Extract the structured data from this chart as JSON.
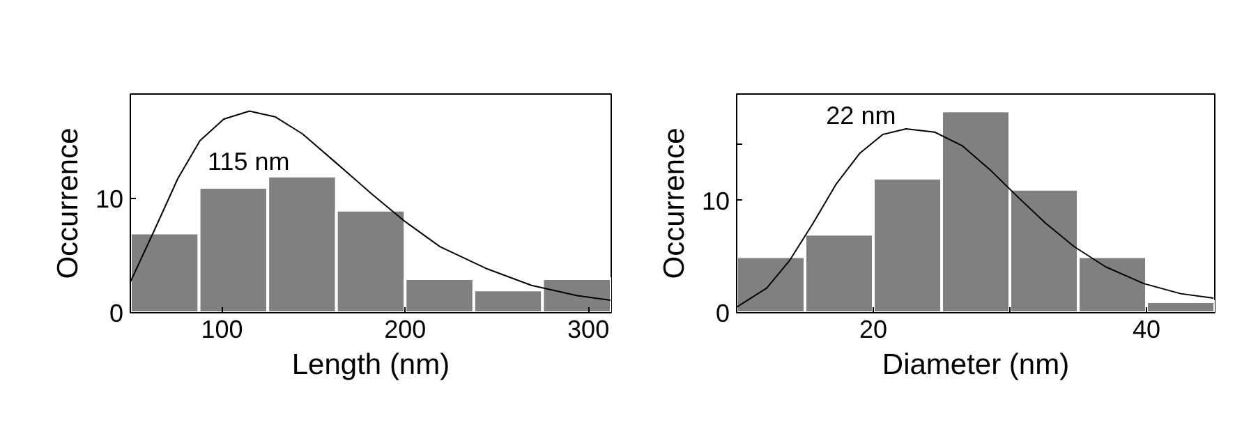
{
  "chart_data": [
    {
      "type": "histogram",
      "xlabel": "Length (nm)",
      "ylabel": "Occurrence",
      "xlim": [
        50,
        312.5
      ],
      "ylim": [
        0,
        19.2
      ],
      "xticks": [
        100,
        200,
        300
      ],
      "yticks": [
        0,
        10
      ],
      "grid": false,
      "series": [
        {
          "color": "#808080",
          "bins": [
            50,
            87.5,
            125,
            162.5,
            200,
            237.5,
            275,
            312.5
          ],
          "values": [
            7,
            11,
            12,
            9,
            3,
            2,
            3
          ]
        },
        {
          "type": "line",
          "color": "#000000",
          "x": [
            50,
            63,
            76,
            88,
            101,
            115,
            129,
            144,
            162,
            182,
            200,
            219,
            244,
            269,
            294,
            312
          ],
          "values": [
            2.7,
            7.2,
            11.8,
            15.1,
            17.0,
            17.7,
            17.2,
            15.7,
            13.2,
            10.4,
            8.0,
            5.8,
            3.9,
            2.4,
            1.5,
            1.1
          ]
        }
      ],
      "annotations": [
        "115 nm"
      ]
    },
    {
      "type": "histogram",
      "xlabel": "Diameter (nm)",
      "ylabel": "Occurrence",
      "xlim": [
        10,
        45
      ],
      "ylim": [
        0,
        19.5
      ],
      "xticks": [
        20,
        {
          "value": 30,
          "label": null
        },
        40
      ],
      "yticks": [
        0,
        10,
        {
          "value": 15,
          "label": null
        }
      ],
      "grid": false,
      "series": [
        {
          "color": "#808080",
          "bins": [
            10,
            15,
            20,
            25,
            30,
            35,
            40,
            45
          ],
          "values": [
            5,
            7,
            12,
            18,
            11,
            5,
            1
          ]
        },
        {
          "type": "line",
          "color": "#000000",
          "x": [
            10,
            12.2,
            13.9,
            15.6,
            17.3,
            19.0,
            20.7,
            22.4,
            24.5,
            26.5,
            28.5,
            30.6,
            32.6,
            34.7,
            37.0,
            39.8,
            42.5,
            44.9
          ],
          "values": [
            0.5,
            2.2,
            4.7,
            8.0,
            11.5,
            14.2,
            15.9,
            16.4,
            16.1,
            14.9,
            12.8,
            10.3,
            8.0,
            5.9,
            4.1,
            2.6,
            1.7,
            1.3
          ]
        }
      ],
      "annotations": [
        "22 nm"
      ]
    }
  ]
}
